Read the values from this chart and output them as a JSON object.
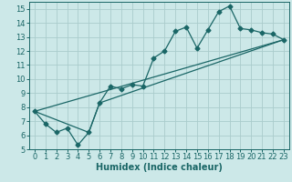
{
  "title": "",
  "xlabel": "Humidex (Indice chaleur)",
  "ylabel": "",
  "xlim": [
    -0.5,
    23.5
  ],
  "ylim": [
    5,
    15.5
  ],
  "yticks": [
    5,
    6,
    7,
    8,
    9,
    10,
    11,
    12,
    13,
    14,
    15
  ],
  "xticks": [
    0,
    1,
    2,
    3,
    4,
    5,
    6,
    7,
    8,
    9,
    10,
    11,
    12,
    13,
    14,
    15,
    16,
    17,
    18,
    19,
    20,
    21,
    22,
    23
  ],
  "bg_color": "#cce8e8",
  "grid_color": "#aacccc",
  "line_color": "#1a6666",
  "line1_x": [
    0,
    1,
    2,
    3,
    4,
    5,
    6,
    7,
    8,
    9,
    10,
    11,
    12,
    13,
    14,
    15,
    16,
    17,
    18,
    19,
    20,
    21,
    22,
    23
  ],
  "line1_y": [
    7.7,
    6.8,
    6.2,
    6.5,
    5.3,
    6.2,
    8.3,
    9.5,
    9.3,
    9.6,
    9.5,
    11.5,
    12.0,
    13.4,
    13.7,
    12.2,
    13.5,
    14.8,
    15.2,
    13.6,
    13.5,
    13.3,
    13.2,
    12.8
  ],
  "line2_x": [
    0,
    23
  ],
  "line2_y": [
    7.7,
    12.8
  ],
  "line3_x": [
    0,
    5,
    6,
    23
  ],
  "line3_y": [
    7.7,
    6.2,
    8.3,
    12.8
  ],
  "marker": "D",
  "marker_size": 2.5,
  "line_width": 0.9,
  "xlabel_fontsize": 7,
  "tick_fontsize": 6
}
